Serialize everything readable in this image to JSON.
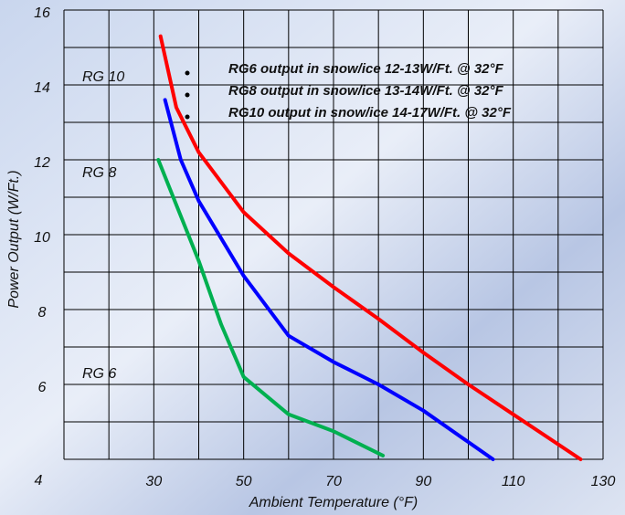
{
  "chart_data": {
    "type": "line",
    "xlabel": "Ambient Temperature (°F)",
    "ylabel": "Power Output (W/Ft.)",
    "xlim": [
      10,
      130
    ],
    "xticks": [
      30,
      50,
      70,
      90,
      110,
      130
    ],
    "xgrid": [
      10,
      20,
      30,
      40,
      50,
      60,
      70,
      80,
      90,
      100,
      110,
      120,
      130
    ],
    "ylim": [
      4,
      16
    ],
    "yticks": [
      4,
      6,
      8,
      10,
      12,
      14,
      16
    ],
    "ygrid": [
      4,
      5,
      6,
      7,
      8,
      9,
      10,
      11,
      12,
      13,
      14,
      15,
      16
    ],
    "grid": true,
    "series": [
      {
        "name": "RG 10",
        "color": "#ff0000",
        "x": [
          31.5,
          35,
          40,
          50,
          60,
          70,
          80,
          90,
          100,
          110,
          125
        ],
        "values": [
          15.3,
          13.4,
          12.2,
          10.6,
          9.5,
          8.6,
          7.75,
          6.85,
          6.0,
          5.2,
          4.0
        ]
      },
      {
        "name": "RG 8",
        "color": "#0000ff",
        "x": [
          32.5,
          36,
          40,
          50,
          60,
          70,
          80,
          90,
          105.5
        ],
        "values": [
          13.6,
          12.0,
          10.9,
          8.9,
          7.3,
          6.6,
          6.0,
          5.3,
          4.0
        ]
      },
      {
        "name": "RG 6",
        "color": "#00b050",
        "x": [
          31,
          35,
          40,
          45,
          50,
          60,
          70,
          81
        ],
        "values": [
          12.0,
          10.8,
          9.3,
          7.6,
          6.2,
          5.2,
          4.75,
          4.1
        ]
      }
    ],
    "annotations": [
      "RG6 output in snow/ice 12-13W/Ft. @ 32°F",
      "RG8 output in snow/ice 13-14W/Ft. @ 32°F",
      "RG10 output in snow/ice 14-17W/Ft. @ 32°F"
    ]
  }
}
